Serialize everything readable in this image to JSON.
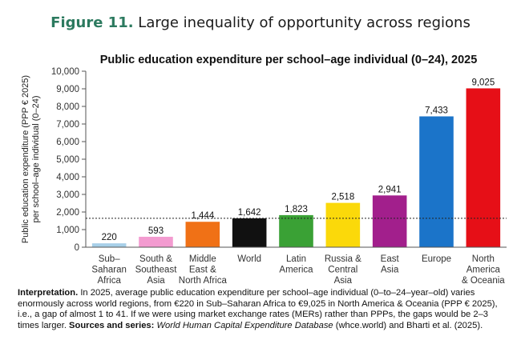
{
  "figure": {
    "number": "Figure 11.",
    "title": "Large inequality of opportunity across regions"
  },
  "chart_data": {
    "type": "bar",
    "title": "Public education expenditure per school–age individual (0–24), 2025",
    "ylabel_lines": [
      "Public education expenditure (PPP € 2025)",
      "per school–age individual (0–24)"
    ],
    "xlabel": "",
    "ylim": [
      0,
      10000
    ],
    "yticks": [
      0,
      1000,
      2000,
      3000,
      4000,
      5000,
      6000,
      7000,
      8000,
      9000,
      10000
    ],
    "ytick_labels": [
      "0",
      "1,000",
      "2,000",
      "3,000",
      "4,000",
      "5,000",
      "6,000",
      "7,000",
      "8,000",
      "9,000",
      "10,000"
    ],
    "categories": [
      [
        "Sub–",
        "Saharan",
        "Africa"
      ],
      [
        "South &",
        "Southeast",
        "Asia"
      ],
      [
        "Middle",
        "East &",
        "North Africa"
      ],
      [
        "World"
      ],
      [
        "Latin",
        "America"
      ],
      [
        "Russia &",
        "Central",
        "Asia"
      ],
      [
        "East",
        "Asia"
      ],
      [
        "Europe"
      ],
      [
        "North",
        "America",
        "& Oceania"
      ]
    ],
    "values": [
      220,
      593,
      1444,
      1642,
      1823,
      2518,
      2941,
      7433,
      9025
    ],
    "value_labels": [
      "220",
      "593",
      "1,444",
      "1,642",
      "1,823",
      "2,518",
      "2,941",
      "7,433",
      "9,025"
    ],
    "colors": [
      "#a7cfe8",
      "#f39bd0",
      "#f07116",
      "#111111",
      "#3aa135",
      "#fbd90a",
      "#a21f8c",
      "#1b74c9",
      "#e60f17"
    ],
    "reference_line": {
      "value": 1642,
      "style": "dotted"
    }
  },
  "caption": {
    "interpretation_label": "Interpretation.",
    "interpretation_text": " In 2025, average public education expenditure per school–age individual (0–to–24–year–old) varies enormously across world regions, from €220 in Sub–Saharan Africa to €9,025 in North America & Oceania (PPP € 2025), i.e., a gap of almost 1 to 41. If we were using market exchange rates (MERs) rather than PPPs, the gaps would be 2–3 times larger.",
    "sources_label": " Sources and series:",
    "sources_database": " World Human Capital Expenditure Database",
    "sources_text": " (whce.world) and Bharti et al. (2025)."
  }
}
